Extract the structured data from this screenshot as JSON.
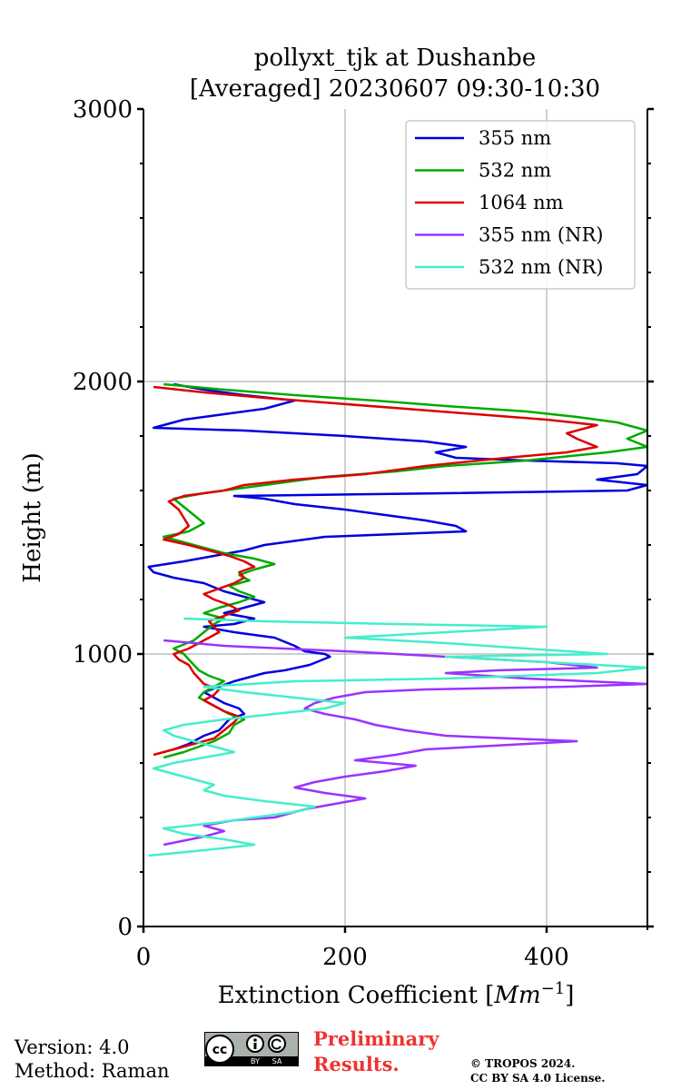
{
  "chart_data": {
    "type": "line",
    "title": "pollyxt_tjk at Dushanbe",
    "subtitle": "[Averaged] 20230607 09:30-10:30",
    "xlabel": "Extinction Coefficient [$Mm^{-1}$]",
    "xlabel_parts": {
      "text": "Extinction Coefficient [",
      "unit": "Mm",
      "exponent": "−1",
      "close": "]"
    },
    "ylabel": "Height (m)",
    "xlim": [
      0,
      500
    ],
    "ylim": [
      0,
      3000
    ],
    "x_ticks": [
      0,
      200,
      400
    ],
    "x_tick_labels": [
      "0",
      "200",
      "400"
    ],
    "y_ticks": [
      0,
      1000,
      2000,
      3000
    ],
    "y_tick_labels": [
      "0",
      "1000",
      "2000",
      "3000"
    ],
    "grid": true,
    "legend_position": "top-right",
    "series": [
      {
        "name": "355 nm",
        "color": "#0000dd",
        "points": [
          [
            30,
            650
          ],
          [
            45,
            670
          ],
          [
            60,
            700
          ],
          [
            75,
            720
          ],
          [
            85,
            760
          ],
          [
            100,
            780
          ],
          [
            95,
            800
          ],
          [
            80,
            820
          ],
          [
            70,
            840
          ],
          [
            60,
            860
          ],
          [
            75,
            880
          ],
          [
            90,
            900
          ],
          [
            100,
            910
          ],
          [
            120,
            930
          ],
          [
            140,
            940
          ],
          [
            165,
            960
          ],
          [
            185,
            990
          ],
          [
            180,
            1000
          ],
          [
            160,
            1010
          ],
          [
            150,
            1030
          ],
          [
            130,
            1060
          ],
          [
            90,
            1080
          ],
          [
            60,
            1100
          ],
          [
            90,
            1110
          ],
          [
            110,
            1130
          ],
          [
            80,
            1150
          ],
          [
            100,
            1170
          ],
          [
            120,
            1190
          ],
          [
            100,
            1210
          ],
          [
            80,
            1230
          ],
          [
            60,
            1260
          ],
          [
            30,
            1280
          ],
          [
            10,
            1300
          ],
          [
            5,
            1320
          ],
          [
            40,
            1340
          ],
          [
            70,
            1360
          ],
          [
            100,
            1380
          ],
          [
            120,
            1400
          ],
          [
            180,
            1430
          ],
          [
            250,
            1440
          ],
          [
            320,
            1450
          ],
          [
            310,
            1470
          ],
          [
            280,
            1490
          ],
          [
            240,
            1510
          ],
          [
            200,
            1530
          ],
          [
            150,
            1550
          ],
          [
            120,
            1570
          ],
          [
            90,
            1580
          ],
          [
            300,
            1590
          ],
          [
            480,
            1600
          ],
          [
            500,
            1620
          ],
          [
            450,
            1640
          ],
          [
            490,
            1660
          ],
          [
            500,
            1690
          ],
          [
            470,
            1700
          ],
          [
            380,
            1710
          ],
          [
            310,
            1720
          ],
          [
            290,
            1740
          ],
          [
            320,
            1760
          ],
          [
            280,
            1780
          ],
          [
            200,
            1800
          ],
          [
            100,
            1820
          ],
          [
            10,
            1830
          ],
          [
            40,
            1860
          ],
          [
            80,
            1880
          ],
          [
            120,
            1900
          ],
          [
            150,
            1930
          ],
          [
            100,
            1950
          ],
          [
            60,
            1970
          ],
          [
            30,
            1990
          ]
        ]
      },
      {
        "name": "532 nm",
        "color": "#00aa00",
        "points": [
          [
            20,
            620
          ],
          [
            40,
            640
          ],
          [
            55,
            660
          ],
          [
            70,
            680
          ],
          [
            85,
            710
          ],
          [
            90,
            740
          ],
          [
            100,
            760
          ],
          [
            85,
            780
          ],
          [
            75,
            800
          ],
          [
            65,
            820
          ],
          [
            55,
            840
          ],
          [
            60,
            860
          ],
          [
            70,
            880
          ],
          [
            80,
            900
          ],
          [
            65,
            920
          ],
          [
            55,
            940
          ],
          [
            50,
            960
          ],
          [
            45,
            980
          ],
          [
            40,
            1000
          ],
          [
            30,
            1020
          ],
          [
            50,
            1050
          ],
          [
            60,
            1080
          ],
          [
            70,
            1110
          ],
          [
            80,
            1130
          ],
          [
            60,
            1150
          ],
          [
            75,
            1170
          ],
          [
            95,
            1190
          ],
          [
            110,
            1210
          ],
          [
            95,
            1230
          ],
          [
            85,
            1250
          ],
          [
            105,
            1270
          ],
          [
            95,
            1290
          ],
          [
            110,
            1310
          ],
          [
            130,
            1330
          ],
          [
            110,
            1350
          ],
          [
            80,
            1370
          ],
          [
            60,
            1390
          ],
          [
            40,
            1410
          ],
          [
            20,
            1430
          ],
          [
            45,
            1450
          ],
          [
            60,
            1480
          ],
          [
            50,
            1510
          ],
          [
            40,
            1540
          ],
          [
            30,
            1570
          ],
          [
            60,
            1590
          ],
          [
            100,
            1610
          ],
          [
            140,
            1630
          ],
          [
            180,
            1650
          ],
          [
            250,
            1670
          ],
          [
            300,
            1690
          ],
          [
            380,
            1710
          ],
          [
            460,
            1740
          ],
          [
            500,
            1760
          ],
          [
            480,
            1790
          ],
          [
            500,
            1820
          ],
          [
            470,
            1850
          ],
          [
            430,
            1870
          ],
          [
            380,
            1890
          ],
          [
            300,
            1910
          ],
          [
            230,
            1930
          ],
          [
            150,
            1950
          ],
          [
            80,
            1970
          ],
          [
            20,
            1990
          ]
        ]
      },
      {
        "name": "1064 nm",
        "color": "#dd0000",
        "points": [
          [
            10,
            630
          ],
          [
            30,
            650
          ],
          [
            50,
            670
          ],
          [
            70,
            690
          ],
          [
            80,
            720
          ],
          [
            90,
            750
          ],
          [
            95,
            770
          ],
          [
            80,
            790
          ],
          [
            70,
            810
          ],
          [
            60,
            830
          ],
          [
            70,
            850
          ],
          [
            75,
            870
          ],
          [
            60,
            890
          ],
          [
            55,
            910
          ],
          [
            50,
            930
          ],
          [
            45,
            960
          ],
          [
            35,
            980
          ],
          [
            30,
            1000
          ],
          [
            45,
            1020
          ],
          [
            55,
            1040
          ],
          [
            65,
            1060
          ],
          [
            75,
            1080
          ],
          [
            70,
            1100
          ],
          [
            65,
            1120
          ],
          [
            80,
            1140
          ],
          [
            95,
            1160
          ],
          [
            85,
            1180
          ],
          [
            70,
            1200
          ],
          [
            60,
            1220
          ],
          [
            75,
            1240
          ],
          [
            90,
            1260
          ],
          [
            100,
            1280
          ],
          [
            95,
            1300
          ],
          [
            110,
            1320
          ],
          [
            100,
            1340
          ],
          [
            85,
            1360
          ],
          [
            65,
            1380
          ],
          [
            45,
            1400
          ],
          [
            20,
            1420
          ],
          [
            35,
            1440
          ],
          [
            45,
            1470
          ],
          [
            40,
            1500
          ],
          [
            35,
            1530
          ],
          [
            25,
            1560
          ],
          [
            40,
            1580
          ],
          [
            80,
            1600
          ],
          [
            100,
            1620
          ],
          [
            150,
            1640
          ],
          [
            220,
            1660
          ],
          [
            280,
            1690
          ],
          [
            360,
            1720
          ],
          [
            420,
            1740
          ],
          [
            450,
            1760
          ],
          [
            430,
            1790
          ],
          [
            420,
            1810
          ],
          [
            450,
            1840
          ],
          [
            400,
            1860
          ],
          [
            330,
            1880
          ],
          [
            260,
            1900
          ],
          [
            190,
            1920
          ],
          [
            120,
            1940
          ],
          [
            60,
            1960
          ],
          [
            10,
            1980
          ]
        ]
      },
      {
        "name": "355 nm (NR)",
        "color": "#9933ff",
        "points": [
          [
            20,
            300
          ],
          [
            60,
            330
          ],
          [
            80,
            350
          ],
          [
            60,
            370
          ],
          [
            90,
            390
          ],
          [
            130,
            400
          ],
          [
            160,
            430
          ],
          [
            190,
            450
          ],
          [
            220,
            470
          ],
          [
            180,
            490
          ],
          [
            150,
            510
          ],
          [
            170,
            530
          ],
          [
            200,
            550
          ],
          [
            240,
            570
          ],
          [
            270,
            590
          ],
          [
            210,
            610
          ],
          [
            250,
            630
          ],
          [
            280,
            650
          ],
          [
            430,
            680
          ],
          [
            300,
            700
          ],
          [
            260,
            720
          ],
          [
            230,
            740
          ],
          [
            210,
            760
          ],
          [
            180,
            780
          ],
          [
            160,
            800
          ],
          [
            170,
            820
          ],
          [
            190,
            840
          ],
          [
            220,
            860
          ],
          [
            280,
            870
          ],
          [
            420,
            880
          ],
          [
            500,
            890
          ],
          [
            380,
            910
          ],
          [
            300,
            930
          ],
          [
            350,
            940
          ],
          [
            450,
            950
          ],
          [
            400,
            970
          ],
          [
            300,
            990
          ],
          [
            200,
            1010
          ],
          [
            80,
            1030
          ],
          [
            20,
            1050
          ]
        ]
      },
      {
        "name": "532 nm (NR)",
        "color": "#44eecc",
        "points": [
          [
            5,
            260
          ],
          [
            60,
            280
          ],
          [
            110,
            300
          ],
          [
            80,
            320
          ],
          [
            40,
            340
          ],
          [
            20,
            360
          ],
          [
            70,
            380
          ],
          [
            110,
            400
          ],
          [
            150,
            420
          ],
          [
            170,
            440
          ],
          [
            120,
            460
          ],
          [
            80,
            480
          ],
          [
            60,
            500
          ],
          [
            70,
            520
          ],
          [
            50,
            540
          ],
          [
            30,
            560
          ],
          [
            10,
            580
          ],
          [
            30,
            600
          ],
          [
            60,
            620
          ],
          [
            90,
            640
          ],
          [
            70,
            660
          ],
          [
            50,
            680
          ],
          [
            30,
            700
          ],
          [
            20,
            720
          ],
          [
            40,
            740
          ],
          [
            80,
            760
          ],
          [
            130,
            780
          ],
          [
            180,
            800
          ],
          [
            200,
            820
          ],
          [
            150,
            840
          ],
          [
            100,
            860
          ],
          [
            60,
            880
          ],
          [
            150,
            900
          ],
          [
            300,
            910
          ],
          [
            450,
            930
          ],
          [
            500,
            950
          ],
          [
            400,
            970
          ],
          [
            300,
            990
          ],
          [
            460,
            1000
          ],
          [
            380,
            1020
          ],
          [
            300,
            1040
          ],
          [
            200,
            1060
          ],
          [
            300,
            1080
          ],
          [
            400,
            1100
          ],
          [
            250,
            1110
          ],
          [
            120,
            1120
          ],
          [
            40,
            1130
          ]
        ]
      }
    ]
  },
  "footer": {
    "version": "Version: 4.0",
    "method": "Method: Raman",
    "preliminary_line1": "Preliminary",
    "preliminary_line2": "Results.",
    "copyright_line1": "© TROPOS 2024.",
    "copyright_line2": "CC BY SA 4.0 License.",
    "cc_label": "cc",
    "by_label": "BY",
    "sa_label": "SA",
    "preliminary_color": "#ee3333"
  }
}
